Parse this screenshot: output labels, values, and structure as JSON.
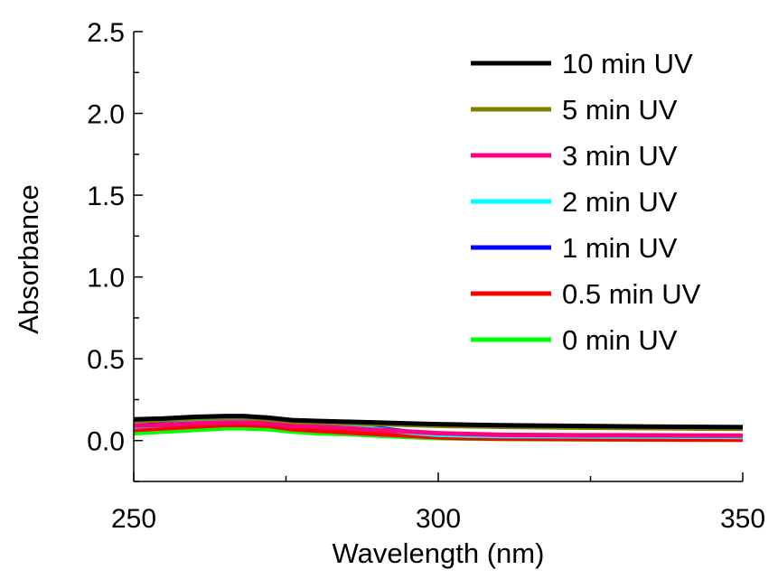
{
  "chart_data": {
    "type": "line",
    "title": "",
    "xlabel": "Wavelength (nm)",
    "ylabel": "Absorbance",
    "xlim": [
      250,
      350
    ],
    "ylim": [
      -0.25,
      2.5
    ],
    "x_major_ticks": [
      250,
      300,
      350
    ],
    "x_tick_labels": [
      "250",
      "300",
      "350"
    ],
    "y_major_ticks": [
      0.0,
      0.5,
      1.0,
      1.5,
      2.0,
      2.5
    ],
    "y_tick_labels": [
      "0.0",
      "0.5",
      "1.0",
      "1.5",
      "2.0",
      "2.5"
    ],
    "grid": false,
    "legend_position": "top-right",
    "x": [
      250,
      255,
      260,
      265,
      268,
      272,
      276,
      280,
      285,
      290,
      295,
      300,
      305,
      310,
      320,
      330,
      340,
      350
    ],
    "series": [
      {
        "name": "10 min UV",
        "color": "#000000",
        "values": [
          0.13,
          0.135,
          0.145,
          0.15,
          0.15,
          0.14,
          0.125,
          0.12,
          0.115,
          0.11,
          0.105,
          0.1,
          0.097,
          0.094,
          0.09,
          0.087,
          0.084,
          0.082
        ]
      },
      {
        "name": "5 min UV",
        "color": "#808000",
        "values": [
          0.12,
          0.125,
          0.135,
          0.14,
          0.14,
          0.13,
          0.115,
          0.11,
          0.105,
          0.1,
          0.095,
          0.09,
          0.087,
          0.084,
          0.08,
          0.077,
          0.074,
          0.072
        ]
      },
      {
        "name": "3 min UV",
        "color": "#ff0080",
        "values": [
          0.09,
          0.095,
          0.105,
          0.11,
          0.11,
          0.105,
          0.09,
          0.085,
          0.075,
          0.065,
          0.055,
          0.045,
          0.04,
          0.035,
          0.033,
          0.032,
          0.031,
          0.03
        ]
      },
      {
        "name": "2 min UV",
        "color": "#00ffff",
        "values": [
          0.085,
          0.095,
          0.11,
          0.125,
          0.13,
          0.13,
          0.115,
          0.105,
          0.09,
          0.07,
          0.05,
          0.035,
          0.03,
          0.028,
          0.026,
          0.025,
          0.024,
          0.022
        ]
      },
      {
        "name": "1 min UV",
        "color": "#0000ff",
        "values": [
          0.09,
          0.1,
          0.12,
          0.135,
          0.14,
          0.14,
          0.12,
          0.11,
          0.095,
          0.075,
          0.055,
          0.04,
          0.035,
          0.032,
          0.03,
          0.028,
          0.026,
          0.024
        ]
      },
      {
        "name": "0.5 min UV",
        "color": "#ff0000",
        "values": [
          0.065,
          0.075,
          0.085,
          0.095,
          0.095,
          0.09,
          0.07,
          0.06,
          0.05,
          0.04,
          0.03,
          0.02,
          0.015,
          0.012,
          0.01,
          0.008,
          0.006,
          0.005
        ]
      },
      {
        "name": "0 min UV",
        "color": "#00ff00",
        "values": [
          0.045,
          0.055,
          0.065,
          0.075,
          0.075,
          0.07,
          0.055,
          0.045,
          0.04,
          0.03,
          0.022,
          0.015,
          0.012,
          0.01,
          0.008,
          0.007,
          0.006,
          0.005
        ]
      }
    ]
  }
}
